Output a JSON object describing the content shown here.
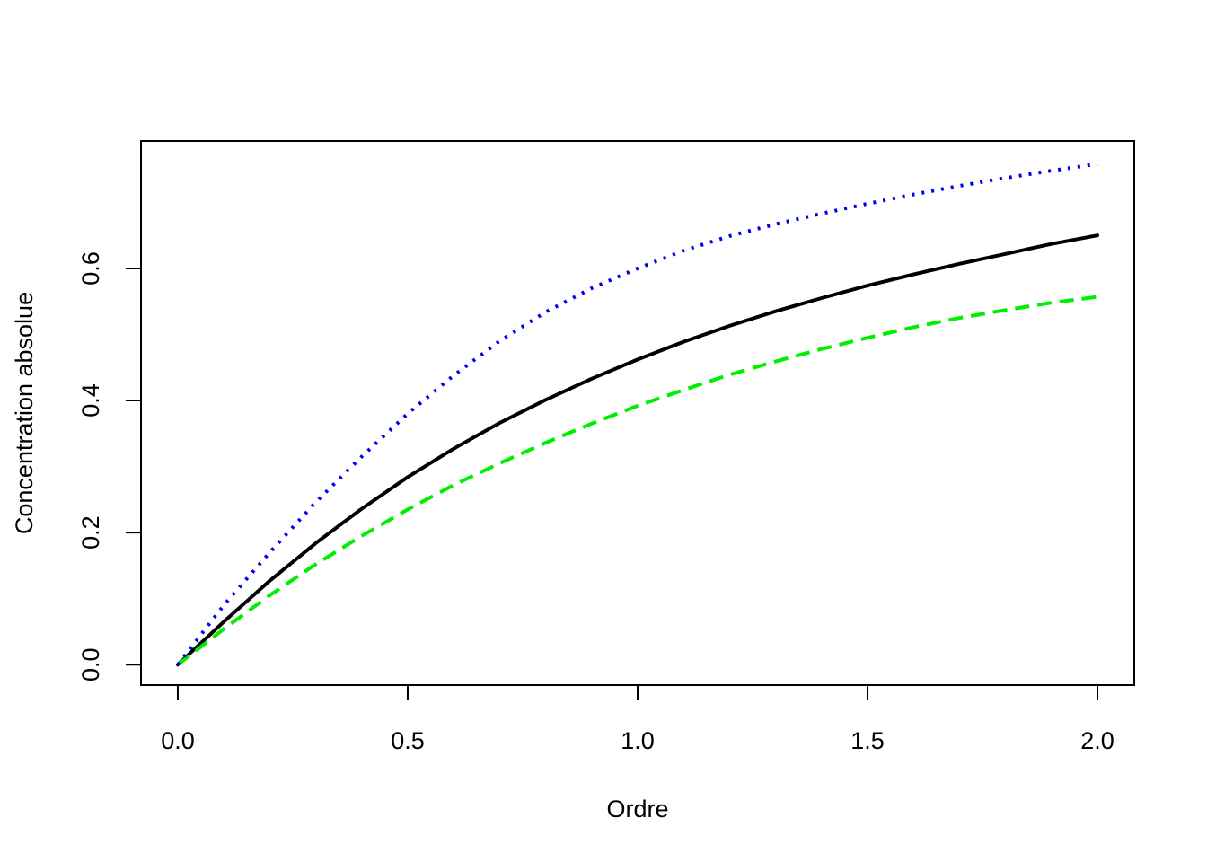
{
  "chart_data": {
    "type": "line",
    "title": "",
    "xlabel": "Ordre",
    "ylabel": "Concentration absolue",
    "xlim": [
      -0.08,
      2.08
    ],
    "ylim": [
      -0.031,
      0.793
    ],
    "x_ticks": [
      0.0,
      0.5,
      1.0,
      1.5,
      2.0
    ],
    "x_tick_labels": [
      "0.0",
      "0.5",
      "1.0",
      "1.5",
      "2.0"
    ],
    "y_ticks": [
      0.0,
      0.2,
      0.4,
      0.6
    ],
    "y_tick_labels": [
      "0.0",
      "0.2",
      "0.4",
      "0.6"
    ],
    "grid": false,
    "legend": "none",
    "x": [
      0.0,
      0.1,
      0.2,
      0.3,
      0.4,
      0.5,
      0.6,
      0.7,
      0.8,
      0.9,
      1.0,
      1.1,
      1.2,
      1.3,
      1.4,
      1.5,
      1.6,
      1.7,
      1.8,
      1.9,
      2.0
    ],
    "series": [
      {
        "color": "#000000",
        "style": "solid",
        "values": [
          0.0,
          0.065,
          0.127,
          0.184,
          0.236,
          0.284,
          0.327,
          0.366,
          0.401,
          0.433,
          0.462,
          0.489,
          0.513,
          0.535,
          0.555,
          0.574,
          0.591,
          0.607,
          0.622,
          0.637,
          0.65
        ]
      },
      {
        "color": "#00ee00",
        "style": "dashed",
        "values": [
          0.0,
          0.054,
          0.105,
          0.152,
          0.195,
          0.235,
          0.272,
          0.305,
          0.336,
          0.365,
          0.392,
          0.416,
          0.439,
          0.459,
          0.478,
          0.495,
          0.511,
          0.525,
          0.537,
          0.548,
          0.557
        ]
      },
      {
        "color": "#0000ee",
        "style": "dotted",
        "values": [
          0.0,
          0.09,
          0.17,
          0.246,
          0.315,
          0.38,
          0.438,
          0.49,
          0.534,
          0.57,
          0.6,
          0.627,
          0.649,
          0.667,
          0.683,
          0.698,
          0.712,
          0.725,
          0.737,
          0.748,
          0.758
        ]
      }
    ]
  }
}
